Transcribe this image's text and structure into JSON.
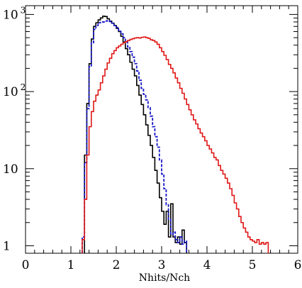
{
  "chart_data": {
    "type": "line",
    "title": "",
    "xlabel": "Nhits/Nch",
    "ylabel": "",
    "xlim": [
      0,
      6
    ],
    "ylim": [
      0.8,
      1300
    ],
    "y_scale": "log",
    "grid": false,
    "legend": "none",
    "x_ticks": [
      0,
      1,
      2,
      3,
      4,
      5,
      6
    ],
    "x_tick_labels": [
      "0",
      "1",
      "2",
      "3",
      "4",
      "5",
      "6"
    ],
    "y_ticks": [
      {
        "value": 1,
        "label_base": "1",
        "label_exp": ""
      },
      {
        "value": 10,
        "label_base": "10",
        "label_exp": ""
      },
      {
        "value": 100,
        "label_base": "10",
        "label_exp": "2"
      },
      {
        "value": 1000,
        "label_base": "10",
        "label_exp": "3"
      }
    ],
    "bin_width": 0.05,
    "series": [
      {
        "color": "#000000",
        "style": "solid",
        "bins": [
          [
            1.3,
            15
          ],
          [
            1.35,
            70
          ],
          [
            1.4,
            230
          ],
          [
            1.45,
            480
          ],
          [
            1.5,
            700
          ],
          [
            1.55,
            780
          ],
          [
            1.6,
            850
          ],
          [
            1.65,
            900
          ],
          [
            1.7,
            950
          ],
          [
            1.75,
            940
          ],
          [
            1.8,
            880
          ],
          [
            1.85,
            820
          ],
          [
            1.9,
            770
          ],
          [
            1.95,
            720
          ],
          [
            2.0,
            660
          ],
          [
            2.05,
            600
          ],
          [
            2.1,
            520
          ],
          [
            2.15,
            440
          ],
          [
            2.2,
            360
          ],
          [
            2.25,
            300
          ],
          [
            2.3,
            240
          ],
          [
            2.35,
            195
          ],
          [
            2.4,
            160
          ],
          [
            2.45,
            120
          ],
          [
            2.5,
            90
          ],
          [
            2.55,
            68
          ],
          [
            2.6,
            50
          ],
          [
            2.65,
            37
          ],
          [
            2.7,
            27
          ],
          [
            2.75,
            20
          ],
          [
            2.8,
            14
          ],
          [
            2.85,
            9.5
          ],
          [
            2.9,
            6.5
          ],
          [
            2.95,
            4.2
          ],
          [
            3.0,
            2.8
          ],
          [
            3.05,
            1.9
          ],
          [
            3.1,
            2.8
          ],
          [
            3.15,
            1.3
          ],
          [
            3.2,
            3.5
          ],
          [
            3.25,
            1.3
          ],
          [
            3.3,
            1.1
          ],
          [
            3.35,
            1.3
          ],
          [
            3.4,
            1.05
          ],
          [
            3.45,
            1.6
          ],
          [
            3.5,
            1.1
          ]
        ]
      },
      {
        "color": "#1515c8",
        "style": "dashed",
        "bins": [
          [
            1.25,
            1.3
          ],
          [
            1.3,
            12
          ],
          [
            1.35,
            60
          ],
          [
            1.4,
            210
          ],
          [
            1.45,
            430
          ],
          [
            1.5,
            640
          ],
          [
            1.55,
            720
          ],
          [
            1.6,
            780
          ],
          [
            1.65,
            790
          ],
          [
            1.7,
            800
          ],
          [
            1.75,
            820
          ],
          [
            1.8,
            830
          ],
          [
            1.85,
            810
          ],
          [
            1.9,
            770
          ],
          [
            1.95,
            720
          ],
          [
            2.0,
            680
          ],
          [
            2.05,
            620
          ],
          [
            2.1,
            560
          ],
          [
            2.15,
            500
          ],
          [
            2.2,
            440
          ],
          [
            2.25,
            380
          ],
          [
            2.3,
            330
          ],
          [
            2.35,
            280
          ],
          [
            2.4,
            230
          ],
          [
            2.45,
            185
          ],
          [
            2.5,
            140
          ],
          [
            2.55,
            110
          ],
          [
            2.6,
            92
          ],
          [
            2.65,
            78
          ],
          [
            2.7,
            62
          ],
          [
            2.75,
            48
          ],
          [
            2.8,
            35
          ],
          [
            2.85,
            26
          ],
          [
            2.9,
            19
          ],
          [
            2.95,
            13
          ],
          [
            3.0,
            8.5
          ],
          [
            3.05,
            5.5
          ],
          [
            3.1,
            3.4
          ],
          [
            3.15,
            2.2
          ],
          [
            3.2,
            1.4
          ],
          [
            3.25,
            1.5
          ],
          [
            3.3,
            1.2
          ],
          [
            3.35,
            1.1
          ],
          [
            3.4,
            1.3
          ],
          [
            3.45,
            1.05
          ],
          [
            3.5,
            1.15
          ]
        ]
      },
      {
        "color": "#e01818",
        "style": "solid",
        "bins": [
          [
            1.25,
            1.2
          ],
          [
            1.3,
            4
          ],
          [
            1.35,
            15
          ],
          [
            1.4,
            35
          ],
          [
            1.45,
            55
          ],
          [
            1.5,
            75
          ],
          [
            1.55,
            90
          ],
          [
            1.6,
            105
          ],
          [
            1.65,
            130
          ],
          [
            1.7,
            160
          ],
          [
            1.75,
            195
          ],
          [
            1.8,
            235
          ],
          [
            1.85,
            270
          ],
          [
            1.9,
            310
          ],
          [
            1.95,
            340
          ],
          [
            2.0,
            370
          ],
          [
            2.05,
            390
          ],
          [
            2.1,
            410
          ],
          [
            2.15,
            430
          ],
          [
            2.2,
            445
          ],
          [
            2.25,
            460
          ],
          [
            2.3,
            475
          ],
          [
            2.35,
            485
          ],
          [
            2.4,
            495
          ],
          [
            2.45,
            500
          ],
          [
            2.5,
            495
          ],
          [
            2.55,
            505
          ],
          [
            2.6,
            510
          ],
          [
            2.65,
            500
          ],
          [
            2.7,
            490
          ],
          [
            2.75,
            470
          ],
          [
            2.8,
            460
          ],
          [
            2.85,
            440
          ],
          [
            2.9,
            410
          ],
          [
            2.95,
            370
          ],
          [
            3.0,
            330
          ],
          [
            3.05,
            295
          ],
          [
            3.1,
            260
          ],
          [
            3.15,
            225
          ],
          [
            3.2,
            200
          ],
          [
            3.25,
            175
          ],
          [
            3.3,
            150
          ],
          [
            3.35,
            130
          ],
          [
            3.4,
            110
          ],
          [
            3.45,
            95
          ],
          [
            3.5,
            80
          ],
          [
            3.55,
            68
          ],
          [
            3.6,
            58
          ],
          [
            3.65,
            50
          ],
          [
            3.7,
            43
          ],
          [
            3.75,
            38
          ],
          [
            3.8,
            33
          ],
          [
            3.85,
            29
          ],
          [
            3.9,
            26
          ],
          [
            3.95,
            23
          ],
          [
            4.0,
            20
          ],
          [
            4.05,
            18
          ],
          [
            4.1,
            16
          ],
          [
            4.15,
            14
          ],
          [
            4.2,
            13
          ],
          [
            4.25,
            11
          ],
          [
            4.3,
            9.5
          ],
          [
            4.35,
            8.5
          ],
          [
            4.4,
            7.5
          ],
          [
            4.45,
            6.5
          ],
          [
            4.5,
            5.5
          ],
          [
            4.55,
            4.5
          ],
          [
            4.6,
            3.6
          ],
          [
            4.65,
            3.0
          ],
          [
            4.7,
            2.4
          ],
          [
            4.75,
            2.0
          ],
          [
            4.8,
            1.7
          ],
          [
            4.85,
            1.5
          ],
          [
            4.9,
            1.3
          ],
          [
            4.95,
            1.2
          ],
          [
            5.0,
            1.15
          ],
          [
            5.05,
            1.1
          ],
          [
            5.1,
            1.2
          ],
          [
            5.15,
            1.05
          ],
          [
            5.2,
            1.1
          ],
          [
            5.25,
            1.05
          ],
          [
            5.3,
            1.1
          ]
        ]
      }
    ]
  }
}
